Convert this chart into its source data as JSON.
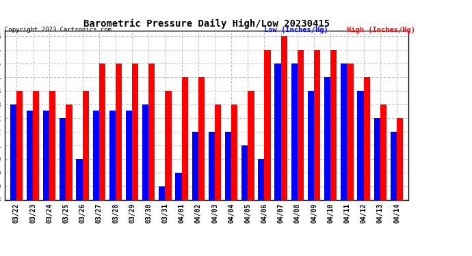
{
  "title": "Barometric Pressure Daily High/Low 20230415",
  "copyright": "Copyright 2023 Cartronics.com",
  "legend_low": "Low",
  "legend_high": "High",
  "legend_units": " (Inches/Hg)",
  "dates": [
    "03/22",
    "03/23",
    "03/24",
    "03/25",
    "03/26",
    "03/27",
    "03/28",
    "03/29",
    "03/30",
    "03/31",
    "04/01",
    "04/02",
    "04/03",
    "04/04",
    "04/05",
    "04/06",
    "04/07",
    "04/08",
    "04/09",
    "04/10",
    "04/11",
    "04/12",
    "04/13",
    "04/14"
  ],
  "high_values": [
    29.953,
    29.953,
    29.953,
    29.823,
    29.953,
    30.215,
    30.215,
    30.215,
    30.215,
    29.953,
    30.084,
    30.084,
    29.823,
    29.823,
    29.953,
    30.345,
    30.476,
    30.345,
    30.345,
    30.345,
    30.215,
    30.084,
    29.823,
    29.692
  ],
  "low_values": [
    29.823,
    29.762,
    29.762,
    29.692,
    29.3,
    29.762,
    29.762,
    29.762,
    29.823,
    29.039,
    29.17,
    29.562,
    29.562,
    29.562,
    29.431,
    29.3,
    30.215,
    30.215,
    29.953,
    30.084,
    30.215,
    29.953,
    29.692,
    29.562
  ],
  "yticks": [
    28.908,
    29.039,
    29.17,
    29.3,
    29.431,
    29.562,
    29.692,
    29.823,
    29.953,
    30.084,
    30.215,
    30.345,
    30.476
  ],
  "ymin": 28.908,
  "ymax": 30.53,
  "bar_color_high": "#ff0000",
  "bar_color_low": "#0000ff",
  "background_color": "#ffffff",
  "grid_color": "#c8c8c8",
  "title_color": "#000000",
  "copyright_color": "#000000",
  "legend_low_color": "#0000ff",
  "legend_high_color": "#ff0000"
}
